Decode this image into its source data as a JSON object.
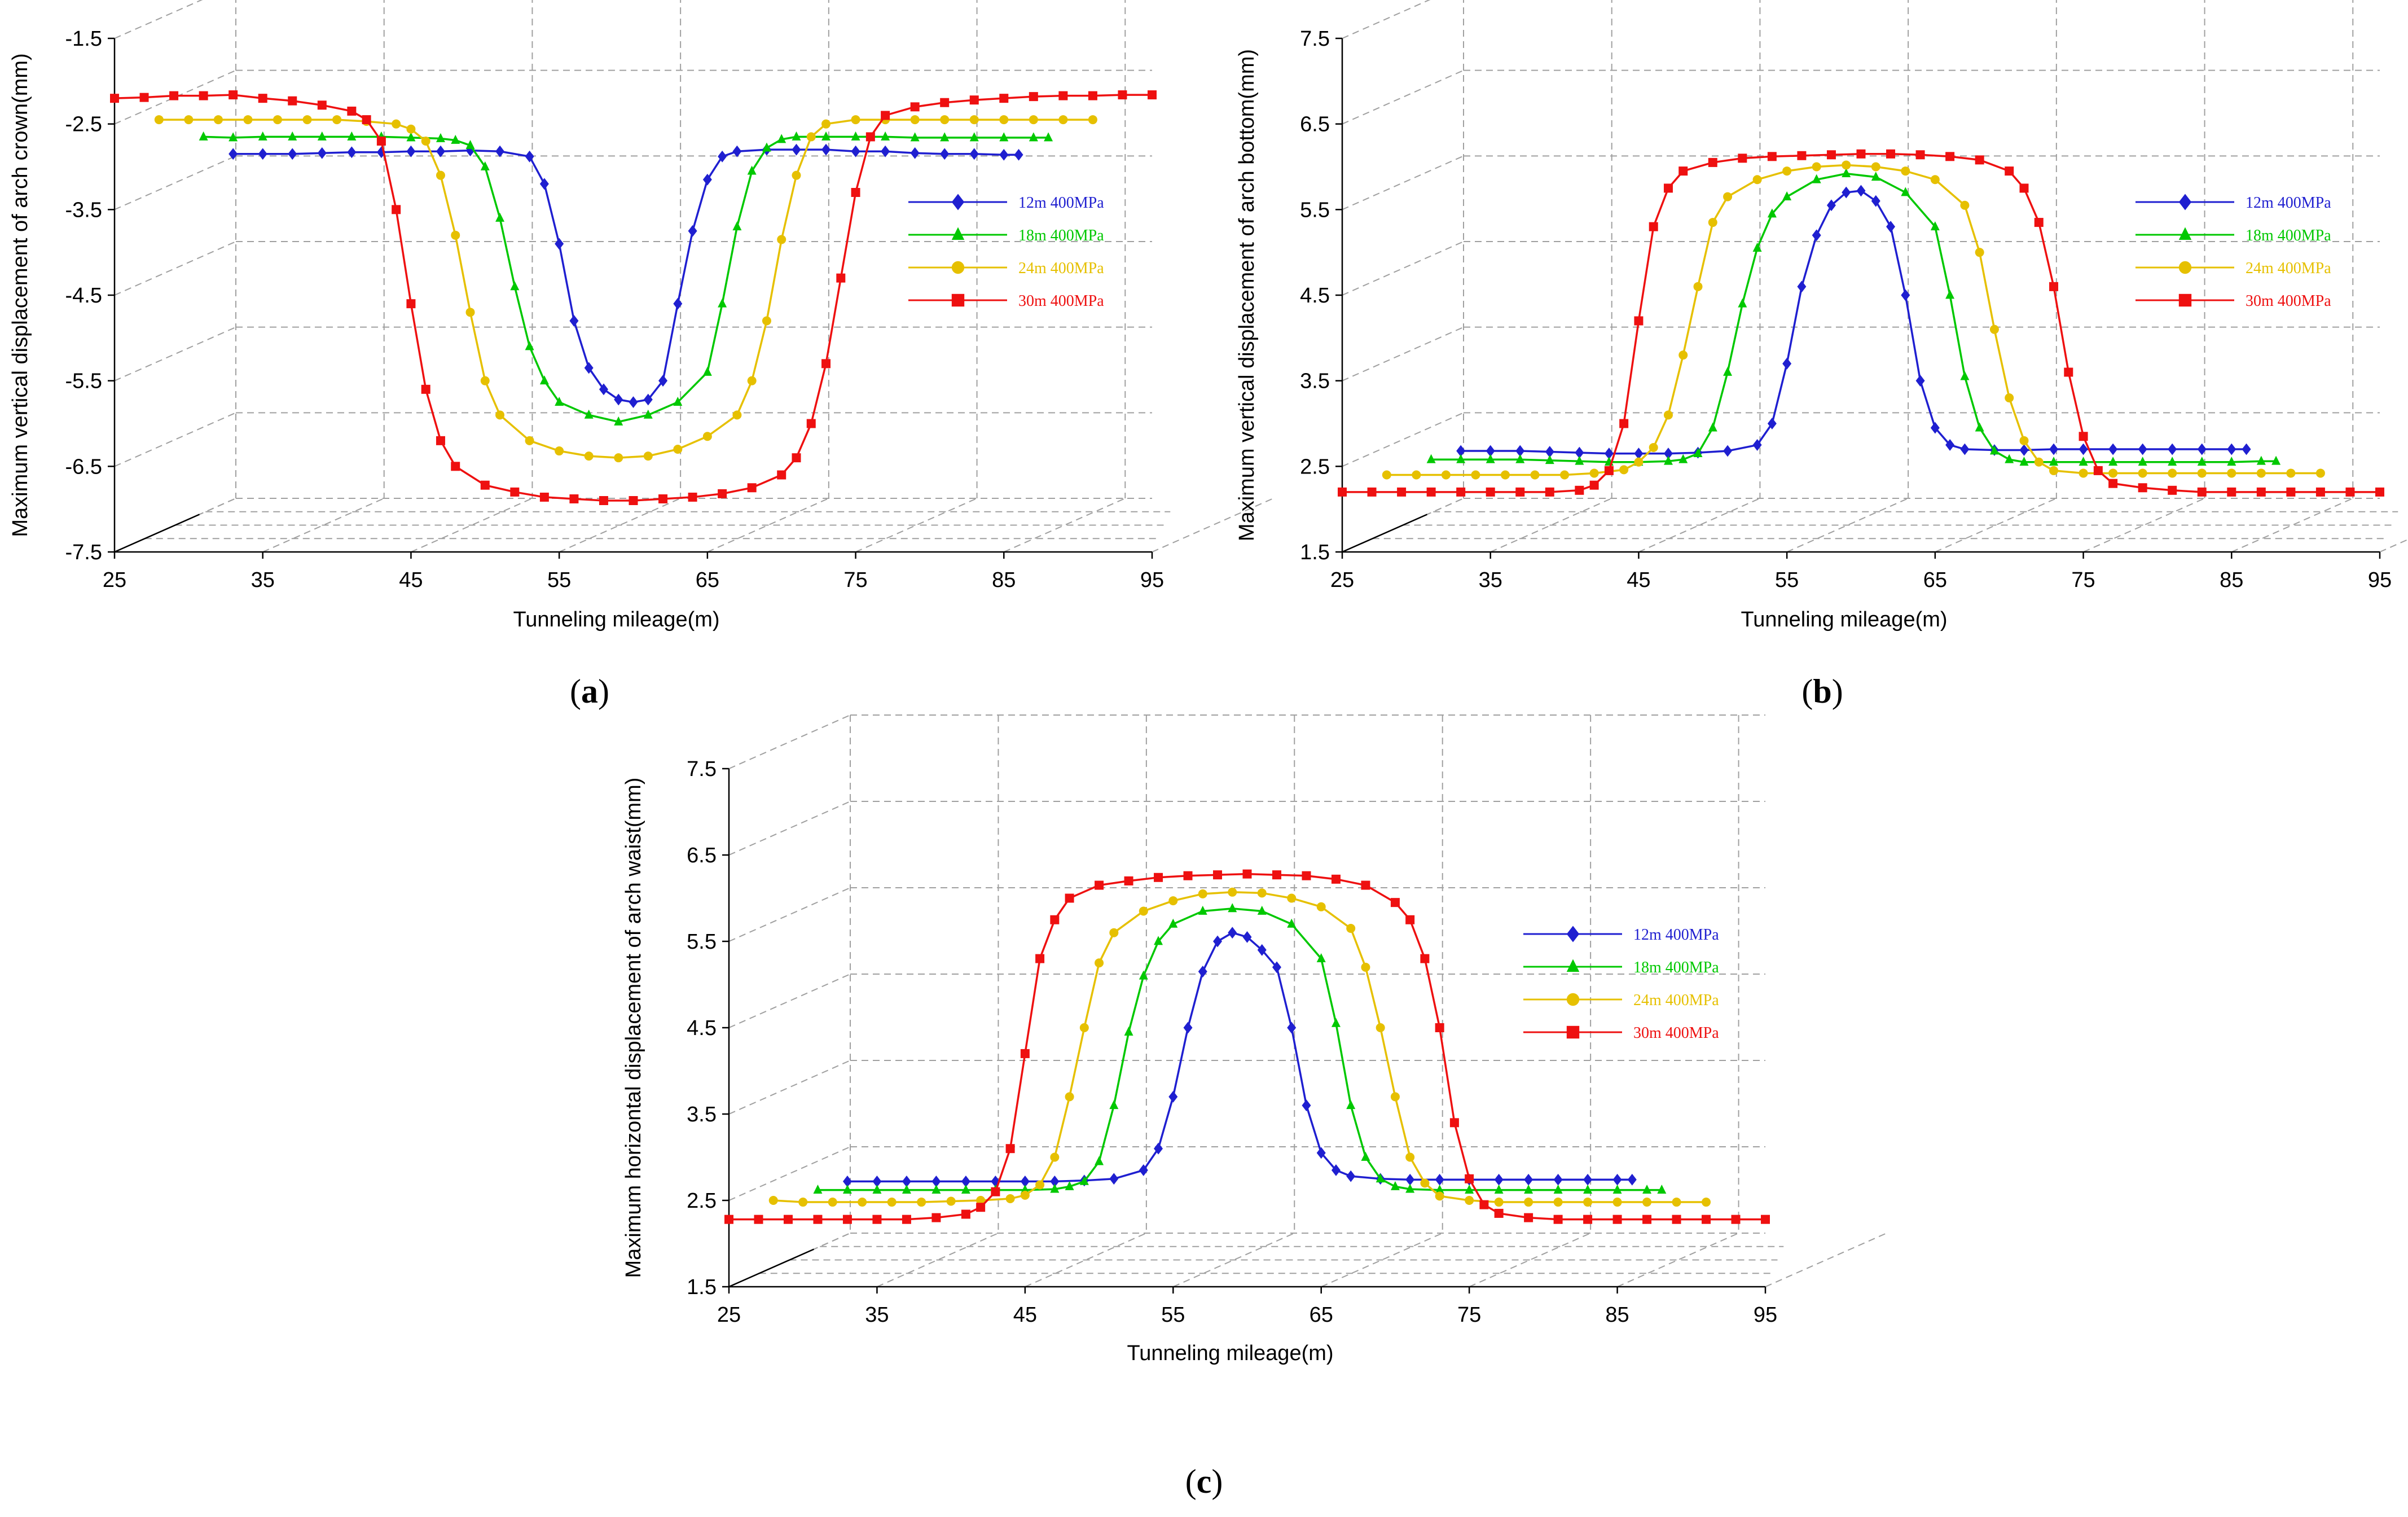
{
  "chart_data": [
    {
      "type": "line",
      "panel": "a",
      "caption": "a",
      "xlabel": "Tunneling mileage(m)",
      "ylabel": "Maximum vertical displacement of arch crown(mm)",
      "xlim": [
        25,
        95
      ],
      "ylim": [
        -7.5,
        -1.5
      ],
      "xticks": [
        "25",
        "35",
        "45",
        "55",
        "65",
        "75",
        "85",
        "95"
      ],
      "yticks": [
        "-7.5",
        "-6.5",
        "-5.5",
        "-4.5",
        "-3.5",
        "-2.5",
        "-1.5"
      ],
      "legend": "right",
      "series": [
        {
          "name": "12m 400MPa",
          "color": "#1f1fd0",
          "marker": "diamond",
          "x": [
            33,
            35,
            37,
            39,
            41,
            43,
            45,
            47,
            49,
            51,
            53,
            54,
            55,
            56,
            57,
            58,
            59,
            60,
            61,
            62,
            63,
            64,
            65,
            66,
            67,
            69,
            71,
            73,
            75,
            77,
            79,
            81,
            83,
            85,
            86
          ],
          "y": [
            -2.85,
            -2.85,
            -2.85,
            -2.84,
            -2.83,
            -2.83,
            -2.82,
            -2.82,
            -2.81,
            -2.82,
            -2.88,
            -3.2,
            -3.9,
            -4.8,
            -5.35,
            -5.6,
            -5.72,
            -5.75,
            -5.72,
            -5.5,
            -4.6,
            -3.75,
            -3.15,
            -2.88,
            -2.82,
            -2.8,
            -2.8,
            -2.8,
            -2.82,
            -2.82,
            -2.84,
            -2.85,
            -2.85,
            -2.86,
            -2.86
          ]
        },
        {
          "name": "18m 400MPa",
          "color": "#00c800",
          "marker": "triangle",
          "x": [
            31,
            33,
            35,
            37,
            39,
            41,
            43,
            45,
            47,
            48,
            49,
            50,
            51,
            52,
            53,
            54,
            55,
            57,
            59,
            61,
            63,
            65,
            66,
            67,
            68,
            69,
            70,
            71,
            73,
            75,
            77,
            79,
            81,
            83,
            85,
            87,
            88
          ],
          "y": [
            -2.65,
            -2.66,
            -2.65,
            -2.65,
            -2.65,
            -2.65,
            -2.65,
            -2.66,
            -2.67,
            -2.69,
            -2.75,
            -3.0,
            -3.6,
            -4.4,
            -5.1,
            -5.5,
            -5.75,
            -5.9,
            -5.98,
            -5.9,
            -5.75,
            -5.4,
            -4.6,
            -3.7,
            -3.05,
            -2.78,
            -2.68,
            -2.65,
            -2.65,
            -2.65,
            -2.65,
            -2.66,
            -2.66,
            -2.66,
            -2.66,
            -2.66,
            -2.66
          ]
        },
        {
          "name": "24m 400MPa",
          "color": "#e6c000",
          "marker": "circle",
          "x": [
            28,
            30,
            32,
            34,
            36,
            38,
            40,
            42,
            44,
            45,
            46,
            47,
            48,
            49,
            50,
            51,
            53,
            55,
            57,
            59,
            61,
            63,
            65,
            67,
            68,
            69,
            70,
            71,
            72,
            73,
            75,
            77,
            79,
            81,
            83,
            85,
            87,
            89,
            91
          ],
          "y": [
            -2.45,
            -2.45,
            -2.45,
            -2.45,
            -2.45,
            -2.45,
            -2.45,
            -2.47,
            -2.5,
            -2.56,
            -2.7,
            -3.1,
            -3.8,
            -4.7,
            -5.5,
            -5.9,
            -6.2,
            -6.32,
            -6.38,
            -6.4,
            -6.38,
            -6.3,
            -6.15,
            -5.9,
            -5.5,
            -4.8,
            -3.85,
            -3.1,
            -2.65,
            -2.5,
            -2.45,
            -2.45,
            -2.45,
            -2.45,
            -2.45,
            -2.45,
            -2.45,
            -2.45,
            -2.45
          ]
        },
        {
          "name": "30m 400MPa",
          "color": "#ee1010",
          "marker": "square",
          "x": [
            25,
            27,
            29,
            31,
            33,
            35,
            37,
            39,
            41,
            42,
            43,
            44,
            45,
            46,
            47,
            48,
            50,
            52,
            54,
            56,
            58,
            60,
            62,
            64,
            66,
            68,
            70,
            71,
            72,
            73,
            74,
            75,
            76,
            77,
            79,
            81,
            83,
            85,
            87,
            89,
            91,
            93,
            95
          ],
          "y": [
            -2.2,
            -2.19,
            -2.17,
            -2.17,
            -2.16,
            -2.2,
            -2.23,
            -2.28,
            -2.35,
            -2.45,
            -2.7,
            -3.5,
            -4.6,
            -5.6,
            -6.2,
            -6.5,
            -6.72,
            -6.8,
            -6.86,
            -6.88,
            -6.9,
            -6.9,
            -6.88,
            -6.86,
            -6.82,
            -6.75,
            -6.6,
            -6.4,
            -6.0,
            -5.3,
            -4.3,
            -3.3,
            -2.65,
            -2.4,
            -2.3,
            -2.25,
            -2.22,
            -2.2,
            -2.18,
            -2.17,
            -2.17,
            -2.16,
            -2.16
          ]
        }
      ]
    },
    {
      "type": "line",
      "panel": "b",
      "caption": "b",
      "xlabel": "Tunneling mileage(m)",
      "ylabel": "Maximum vertical displacement of arch bottom(mm)",
      "xlim": [
        25,
        95
      ],
      "ylim": [
        1.5,
        7.5
      ],
      "xticks": [
        "25",
        "35",
        "45",
        "55",
        "65",
        "75",
        "85",
        "95"
      ],
      "yticks": [
        "1.5",
        "2.5",
        "3.5",
        "4.5",
        "5.5",
        "6.5",
        "7.5"
      ],
      "legend": "right",
      "series": [
        {
          "name": "12m 400MPa",
          "color": "#1f1fd0",
          "marker": "diamond",
          "x": [
            33,
            35,
            37,
            39,
            41,
            43,
            45,
            47,
            49,
            51,
            53,
            54,
            55,
            56,
            57,
            58,
            59,
            60,
            61,
            62,
            63,
            64,
            65,
            66,
            67,
            69,
            71,
            73,
            75,
            77,
            79,
            81,
            83,
            85,
            86
          ],
          "y": [
            2.68,
            2.68,
            2.68,
            2.67,
            2.66,
            2.65,
            2.65,
            2.65,
            2.66,
            2.68,
            2.75,
            3.0,
            3.7,
            4.6,
            5.2,
            5.55,
            5.7,
            5.72,
            5.6,
            5.3,
            4.5,
            3.5,
            2.95,
            2.75,
            2.7,
            2.69,
            2.69,
            2.7,
            2.7,
            2.7,
            2.7,
            2.7,
            2.7,
            2.7,
            2.7
          ]
        },
        {
          "name": "18m 400MPa",
          "color": "#00c800",
          "marker": "triangle",
          "x": [
            31,
            33,
            35,
            37,
            39,
            41,
            43,
            45,
            47,
            48,
            49,
            50,
            51,
            52,
            53,
            54,
            55,
            57,
            59,
            61,
            63,
            65,
            66,
            67,
            68,
            69,
            70,
            71,
            73,
            75,
            77,
            79,
            81,
            83,
            85,
            87,
            88
          ],
          "y": [
            2.58,
            2.58,
            2.58,
            2.58,
            2.57,
            2.56,
            2.55,
            2.55,
            2.56,
            2.58,
            2.65,
            2.95,
            3.6,
            4.4,
            5.05,
            5.45,
            5.65,
            5.85,
            5.92,
            5.88,
            5.7,
            5.3,
            4.5,
            3.55,
            2.95,
            2.68,
            2.58,
            2.55,
            2.55,
            2.55,
            2.55,
            2.55,
            2.55,
            2.55,
            2.55,
            2.56,
            2.56
          ]
        },
        {
          "name": "24m 400MPa",
          "color": "#e6c000",
          "marker": "circle",
          "x": [
            28,
            30,
            32,
            34,
            36,
            38,
            40,
            42,
            44,
            45,
            46,
            47,
            48,
            49,
            50,
            51,
            53,
            55,
            57,
            59,
            61,
            63,
            65,
            67,
            68,
            69,
            70,
            71,
            72,
            73,
            75,
            77,
            79,
            81,
            83,
            85,
            87,
            89,
            91
          ],
          "y": [
            2.4,
            2.4,
            2.4,
            2.4,
            2.4,
            2.4,
            2.4,
            2.42,
            2.46,
            2.55,
            2.72,
            3.1,
            3.8,
            4.6,
            5.35,
            5.65,
            5.85,
            5.95,
            6.0,
            6.02,
            6.0,
            5.95,
            5.85,
            5.55,
            5.0,
            4.1,
            3.3,
            2.8,
            2.55,
            2.45,
            2.42,
            2.42,
            2.42,
            2.42,
            2.42,
            2.42,
            2.42,
            2.42,
            2.42
          ]
        },
        {
          "name": "30m 400MPa",
          "color": "#ee1010",
          "marker": "square",
          "x": [
            25,
            27,
            29,
            31,
            33,
            35,
            37,
            39,
            41,
            42,
            43,
            44,
            45,
            46,
            47,
            48,
            50,
            52,
            54,
            56,
            58,
            60,
            62,
            64,
            66,
            68,
            70,
            71,
            72,
            73,
            74,
            75,
            76,
            77,
            79,
            81,
            83,
            85,
            87,
            89,
            91,
            93,
            95
          ],
          "y": [
            2.2,
            2.2,
            2.2,
            2.2,
            2.2,
            2.2,
            2.2,
            2.2,
            2.22,
            2.28,
            2.45,
            3.0,
            4.2,
            5.3,
            5.75,
            5.95,
            6.05,
            6.1,
            6.12,
            6.13,
            6.14,
            6.15,
            6.15,
            6.14,
            6.12,
            6.08,
            5.95,
            5.75,
            5.35,
            4.6,
            3.6,
            2.85,
            2.45,
            2.3,
            2.25,
            2.22,
            2.2,
            2.2,
            2.2,
            2.2,
            2.2,
            2.2,
            2.2
          ]
        }
      ]
    },
    {
      "type": "line",
      "panel": "c",
      "caption": "c",
      "xlabel": "Tunneling mileage(m)",
      "ylabel": "Maximum horizontal displacement of arch waist(mm)",
      "xlim": [
        25,
        95
      ],
      "ylim": [
        1.5,
        7.5
      ],
      "xticks": [
        "25",
        "35",
        "45",
        "55",
        "65",
        "75",
        "85",
        "95"
      ],
      "yticks": [
        "1.5",
        "2.5",
        "3.5",
        "4.5",
        "5.5",
        "6.5",
        "7.5"
      ],
      "legend": "right",
      "series": [
        {
          "name": "12m 400MPa",
          "color": "#1f1fd0",
          "marker": "diamond",
          "x": [
            33,
            35,
            37,
            39,
            41,
            43,
            45,
            47,
            49,
            51,
            53,
            54,
            55,
            56,
            57,
            58,
            59,
            60,
            61,
            62,
            63,
            64,
            65,
            66,
            67,
            69,
            71,
            73,
            75,
            77,
            79,
            81,
            83,
            85,
            86
          ],
          "y": [
            2.72,
            2.72,
            2.72,
            2.72,
            2.72,
            2.72,
            2.72,
            2.72,
            2.73,
            2.75,
            2.85,
            3.1,
            3.7,
            4.5,
            5.15,
            5.5,
            5.6,
            5.55,
            5.4,
            5.2,
            4.5,
            3.6,
            3.05,
            2.85,
            2.78,
            2.75,
            2.74,
            2.74,
            2.74,
            2.74,
            2.74,
            2.74,
            2.74,
            2.74,
            2.74
          ]
        },
        {
          "name": "18m 400MPa",
          "color": "#00c800",
          "marker": "triangle",
          "x": [
            31,
            33,
            35,
            37,
            39,
            41,
            43,
            45,
            47,
            48,
            49,
            50,
            51,
            52,
            53,
            54,
            55,
            57,
            59,
            61,
            63,
            65,
            66,
            67,
            68,
            69,
            70,
            71,
            73,
            75,
            77,
            79,
            81,
            83,
            85,
            87,
            88
          ],
          "y": [
            2.62,
            2.62,
            2.62,
            2.62,
            2.62,
            2.62,
            2.62,
            2.62,
            2.63,
            2.66,
            2.72,
            2.95,
            3.6,
            4.45,
            5.1,
            5.5,
            5.7,
            5.85,
            5.88,
            5.85,
            5.7,
            5.3,
            4.55,
            3.6,
            3.0,
            2.75,
            2.66,
            2.63,
            2.62,
            2.62,
            2.62,
            2.62,
            2.62,
            2.62,
            2.62,
            2.62,
            2.62
          ]
        },
        {
          "name": "24m 400MPa",
          "color": "#e6c000",
          "marker": "circle",
          "x": [
            28,
            30,
            32,
            34,
            36,
            38,
            40,
            42,
            44,
            45,
            46,
            47,
            48,
            49,
            50,
            51,
            53,
            55,
            57,
            59,
            61,
            63,
            65,
            67,
            68,
            69,
            70,
            71,
            72,
            73,
            75,
            77,
            79,
            81,
            83,
            85,
            87,
            89,
            91
          ],
          "y": [
            2.5,
            2.48,
            2.48,
            2.48,
            2.48,
            2.48,
            2.49,
            2.5,
            2.52,
            2.56,
            2.68,
            3.0,
            3.7,
            4.5,
            5.25,
            5.6,
            5.85,
            5.97,
            6.05,
            6.07,
            6.06,
            6.0,
            5.9,
            5.65,
            5.2,
            4.5,
            3.7,
            3.0,
            2.7,
            2.55,
            2.5,
            2.48,
            2.48,
            2.48,
            2.48,
            2.48,
            2.48,
            2.48,
            2.48
          ]
        },
        {
          "name": "30m 400MPa",
          "color": "#ee1010",
          "marker": "square",
          "x": [
            25,
            27,
            29,
            31,
            33,
            35,
            37,
            39,
            41,
            42,
            43,
            44,
            45,
            46,
            47,
            48,
            50,
            52,
            54,
            56,
            58,
            60,
            62,
            64,
            66,
            68,
            70,
            71,
            72,
            73,
            74,
            75,
            76,
            77,
            79,
            81,
            83,
            85,
            87,
            89,
            91,
            93,
            95
          ],
          "y": [
            2.28,
            2.28,
            2.28,
            2.28,
            2.28,
            2.28,
            2.28,
            2.3,
            2.34,
            2.42,
            2.6,
            3.1,
            4.2,
            5.3,
            5.75,
            6.0,
            6.15,
            6.2,
            6.24,
            6.26,
            6.27,
            6.28,
            6.27,
            6.26,
            6.22,
            6.15,
            5.95,
            5.75,
            5.3,
            4.5,
            3.4,
            2.75,
            2.45,
            2.35,
            2.3,
            2.28,
            2.28,
            2.28,
            2.28,
            2.28,
            2.28,
            2.28,
            2.28
          ]
        }
      ]
    }
  ]
}
